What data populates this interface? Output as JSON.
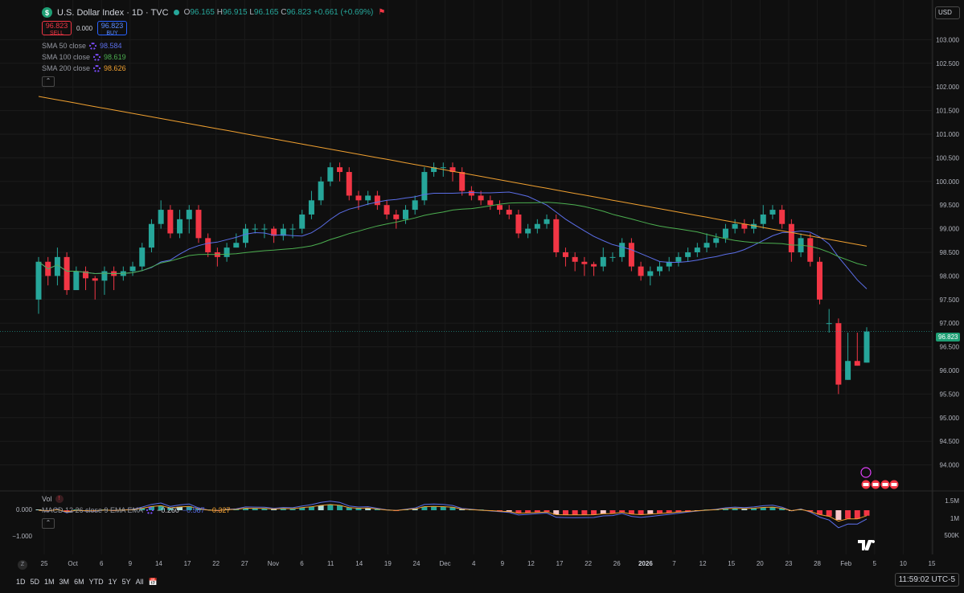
{
  "header": {
    "symbol_badge": "$",
    "title": "U.S. Dollar Index · 1D · TVC",
    "ohlc": {
      "o_label": "O",
      "o": "96.165",
      "h_label": "H",
      "h": "96.915",
      "l_label": "L",
      "l": "96.165",
      "c_label": "C",
      "c": "96.823",
      "change": "+0.661 (+0.69%)"
    }
  },
  "trade": {
    "sell_price": "96.823",
    "sell_label": "SELL",
    "spread": "0.000",
    "buy_price": "96.823",
    "buy_label": "BUY"
  },
  "indicators": [
    {
      "name": "SMA 50 close",
      "value": "98.584",
      "color": "#5b6ee8"
    },
    {
      "name": "SMA 100 close",
      "value": "98.619",
      "color": "#4caf50"
    },
    {
      "name": "SMA 200 close",
      "value": "98.626",
      "color": "#f0a030"
    }
  ],
  "currency": "USD",
  "current_price": "96.823",
  "price_axis": [
    "103.000",
    "102.500",
    "102.000",
    "101.500",
    "101.000",
    "100.500",
    "100.000",
    "99.500",
    "99.000",
    "98.500",
    "98.000",
    "97.500",
    "97.000",
    "96.500",
    "96.000",
    "95.500",
    "95.000",
    "94.500",
    "94.000"
  ],
  "time_axis": [
    "25",
    "Oct",
    "6",
    "9",
    "14",
    "17",
    "22",
    "27",
    "Nov",
    "6",
    "11",
    "14",
    "19",
    "24",
    "Dec",
    "4",
    "9",
    "12",
    "17",
    "22",
    "26",
    "2026",
    "7",
    "12",
    "15",
    "20",
    "23",
    "28",
    "Feb",
    "5",
    "10",
    "15"
  ],
  "vol_panel": {
    "label": "Vol",
    "axis": [
      "1.5M",
      "1M",
      "500K"
    ]
  },
  "macd_panel": {
    "label": "MACD 12 26 close 9 EMA EMA",
    "v1": "−0.260",
    "v2": "−0.587",
    "v3": "−0.327",
    "axis": [
      "0.000",
      "−1.000"
    ]
  },
  "ranges": [
    "1D",
    "5D",
    "1M",
    "3M",
    "6M",
    "YTD",
    "1Y",
    "5Y",
    "All"
  ],
  "clock": "11:59:02 UTC-5",
  "zoom_label": "Z",
  "colors": {
    "up": "#26a69a",
    "down": "#f23645",
    "bg": "#0f0f0f"
  },
  "chart_data": {
    "type": "candlestick",
    "ylim": [
      93.5,
      103.5
    ],
    "candles": [
      [
        97.5,
        98.3,
        97.2,
        98.4
      ],
      [
        98.3,
        98.0,
        97.8,
        98.4
      ],
      [
        98.0,
        98.4,
        97.8,
        98.6
      ],
      [
        98.4,
        97.7,
        97.6,
        98.5
      ],
      [
        97.7,
        98.1,
        97.8,
        98.2
      ],
      [
        98.1,
        97.95,
        97.7,
        98.2
      ],
      [
        97.95,
        97.9,
        97.5,
        98.0
      ],
      [
        97.9,
        98.1,
        97.6,
        98.2
      ],
      [
        98.1,
        98.0,
        97.7,
        98.2
      ],
      [
        98.0,
        98.1,
        97.9,
        98.2
      ],
      [
        98.1,
        98.2,
        98.0,
        98.3
      ],
      [
        98.2,
        98.6,
        98.1,
        98.7
      ],
      [
        98.6,
        99.1,
        98.5,
        99.2
      ],
      [
        99.1,
        99.4,
        99.0,
        99.6
      ],
      [
        99.4,
        98.9,
        98.8,
        99.5
      ],
      [
        98.9,
        99.2,
        98.8,
        99.4
      ],
      [
        99.2,
        99.4,
        98.9,
        99.5
      ],
      [
        99.4,
        98.8,
        98.7,
        99.5
      ],
      [
        98.8,
        98.5,
        98.4,
        98.9
      ],
      [
        98.5,
        98.4,
        98.2,
        98.6
      ],
      [
        98.4,
        98.6,
        98.3,
        98.7
      ],
      [
        98.6,
        98.7,
        98.6,
        98.9
      ],
      [
        98.7,
        99.0,
        98.6,
        99.1
      ],
      [
        99.0,
        99.0,
        98.9,
        99.1
      ],
      [
        99.0,
        99.0,
        98.8,
        99.1
      ],
      [
        99.0,
        98.85,
        98.7,
        99.05
      ],
      [
        98.85,
        99.0,
        98.75,
        99.1
      ],
      [
        99.0,
        99.0,
        98.8,
        99.1
      ],
      [
        99.0,
        99.3,
        98.9,
        99.4
      ],
      [
        99.3,
        99.6,
        99.2,
        99.8
      ],
      [
        99.6,
        100.0,
        99.5,
        100.1
      ],
      [
        100.0,
        100.3,
        99.9,
        100.4
      ],
      [
        100.3,
        100.2,
        100.0,
        100.4
      ],
      [
        100.2,
        99.7,
        99.6,
        100.3
      ],
      [
        99.7,
        99.6,
        99.4,
        99.8
      ],
      [
        99.6,
        99.7,
        99.5,
        99.8
      ],
      [
        99.7,
        99.5,
        99.4,
        99.8
      ],
      [
        99.5,
        99.3,
        99.2,
        99.6
      ],
      [
        99.3,
        99.2,
        99.0,
        99.4
      ],
      [
        99.2,
        99.4,
        99.1,
        99.5
      ],
      [
        99.4,
        99.6,
        99.3,
        99.7
      ],
      [
        99.6,
        100.2,
        99.5,
        100.3
      ],
      [
        100.2,
        100.3,
        100.1,
        100.4
      ],
      [
        100.3,
        100.3,
        100.1,
        100.4
      ],
      [
        100.3,
        100.2,
        100.0,
        100.4
      ],
      [
        100.2,
        99.8,
        99.7,
        100.3
      ],
      [
        99.8,
        99.7,
        99.6,
        99.9
      ],
      [
        99.7,
        99.6,
        99.5,
        99.8
      ],
      [
        99.6,
        99.5,
        99.4,
        99.7
      ],
      [
        99.5,
        99.4,
        99.3,
        99.6
      ],
      [
        99.4,
        99.3,
        99.2,
        99.5
      ],
      [
        99.3,
        98.9,
        98.8,
        99.4
      ],
      [
        98.9,
        99.0,
        98.8,
        99.1
      ],
      [
        99.0,
        99.1,
        98.9,
        99.2
      ],
      [
        99.1,
        99.2,
        99.0,
        99.3
      ],
      [
        99.2,
        98.5,
        98.4,
        99.3
      ],
      [
        98.5,
        98.4,
        98.2,
        98.6
      ],
      [
        98.4,
        98.3,
        98.1,
        98.5
      ],
      [
        98.3,
        98.25,
        98.0,
        98.4
      ],
      [
        98.25,
        98.2,
        98.0,
        98.3
      ],
      [
        98.2,
        98.4,
        98.1,
        98.6
      ],
      [
        98.4,
        98.4,
        98.3,
        98.5
      ],
      [
        98.4,
        98.7,
        98.3,
        98.8
      ],
      [
        98.7,
        98.2,
        98.1,
        98.8
      ],
      [
        98.2,
        98.0,
        97.9,
        98.3
      ],
      [
        98.0,
        98.1,
        97.8,
        98.2
      ],
      [
        98.1,
        98.2,
        98.0,
        98.3
      ],
      [
        98.2,
        98.3,
        98.1,
        98.4
      ],
      [
        98.3,
        98.4,
        98.2,
        98.5
      ],
      [
        98.4,
        98.5,
        98.3,
        98.6
      ],
      [
        98.5,
        98.6,
        98.4,
        98.7
      ],
      [
        98.6,
        98.7,
        98.5,
        98.9
      ],
      [
        98.7,
        98.8,
        98.6,
        98.9
      ],
      [
        98.8,
        99.0,
        98.7,
        99.1
      ],
      [
        99.0,
        99.1,
        98.9,
        99.2
      ],
      [
        99.1,
        99.0,
        98.9,
        99.2
      ],
      [
        99.0,
        99.1,
        98.9,
        99.2
      ],
      [
        99.1,
        99.3,
        99.0,
        99.5
      ],
      [
        99.3,
        99.4,
        99.2,
        99.5
      ],
      [
        99.4,
        99.1,
        99.0,
        99.5
      ],
      [
        99.1,
        98.5,
        98.3,
        99.2
      ],
      [
        98.5,
        98.8,
        98.4,
        98.9
      ],
      [
        98.8,
        98.3,
        98.2,
        98.9
      ],
      [
        98.3,
        97.5,
        97.4,
        98.4
      ],
      [
        97.0,
        97.0,
        96.8,
        97.3
      ],
      [
        97.0,
        95.7,
        95.5,
        97.1
      ],
      [
        95.8,
        96.2,
        95.8,
        96.8
      ],
      [
        96.2,
        96.1,
        96.1,
        96.8
      ],
      [
        96.165,
        96.823,
        96.165,
        96.915
      ]
    ]
  }
}
